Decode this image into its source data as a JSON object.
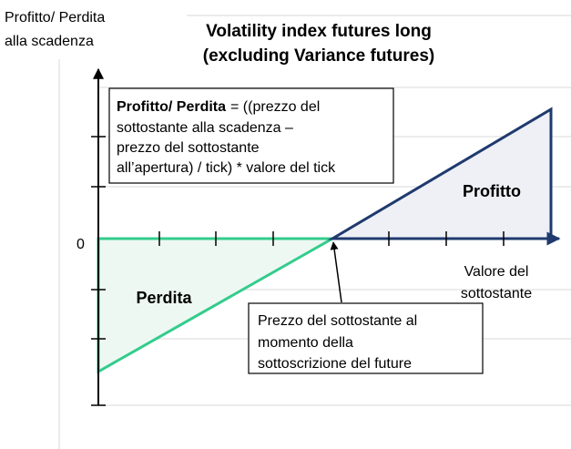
{
  "header": {
    "y_axis_label": [
      "Profitto/ Perdita",
      "alla scadenza"
    ],
    "title": [
      "Volatility index futures long",
      "(excluding Variance futures)"
    ]
  },
  "formula": {
    "term": "Profitto/ Perdita",
    "lines": [
      "= ((prezzo del",
      "sottostante alla scadenza –",
      "prezzo del sottostante",
      "all’apertura) / tick) * valore del tick"
    ]
  },
  "regions": {
    "profit": "Profitto",
    "loss": "Perdita"
  },
  "axis": {
    "zero": "0",
    "x_label": [
      "Valore del",
      "sottostante"
    ]
  },
  "callout": [
    "Prezzo del sottostante al",
    "momento della",
    "sottoscrizione del future"
  ]
}
